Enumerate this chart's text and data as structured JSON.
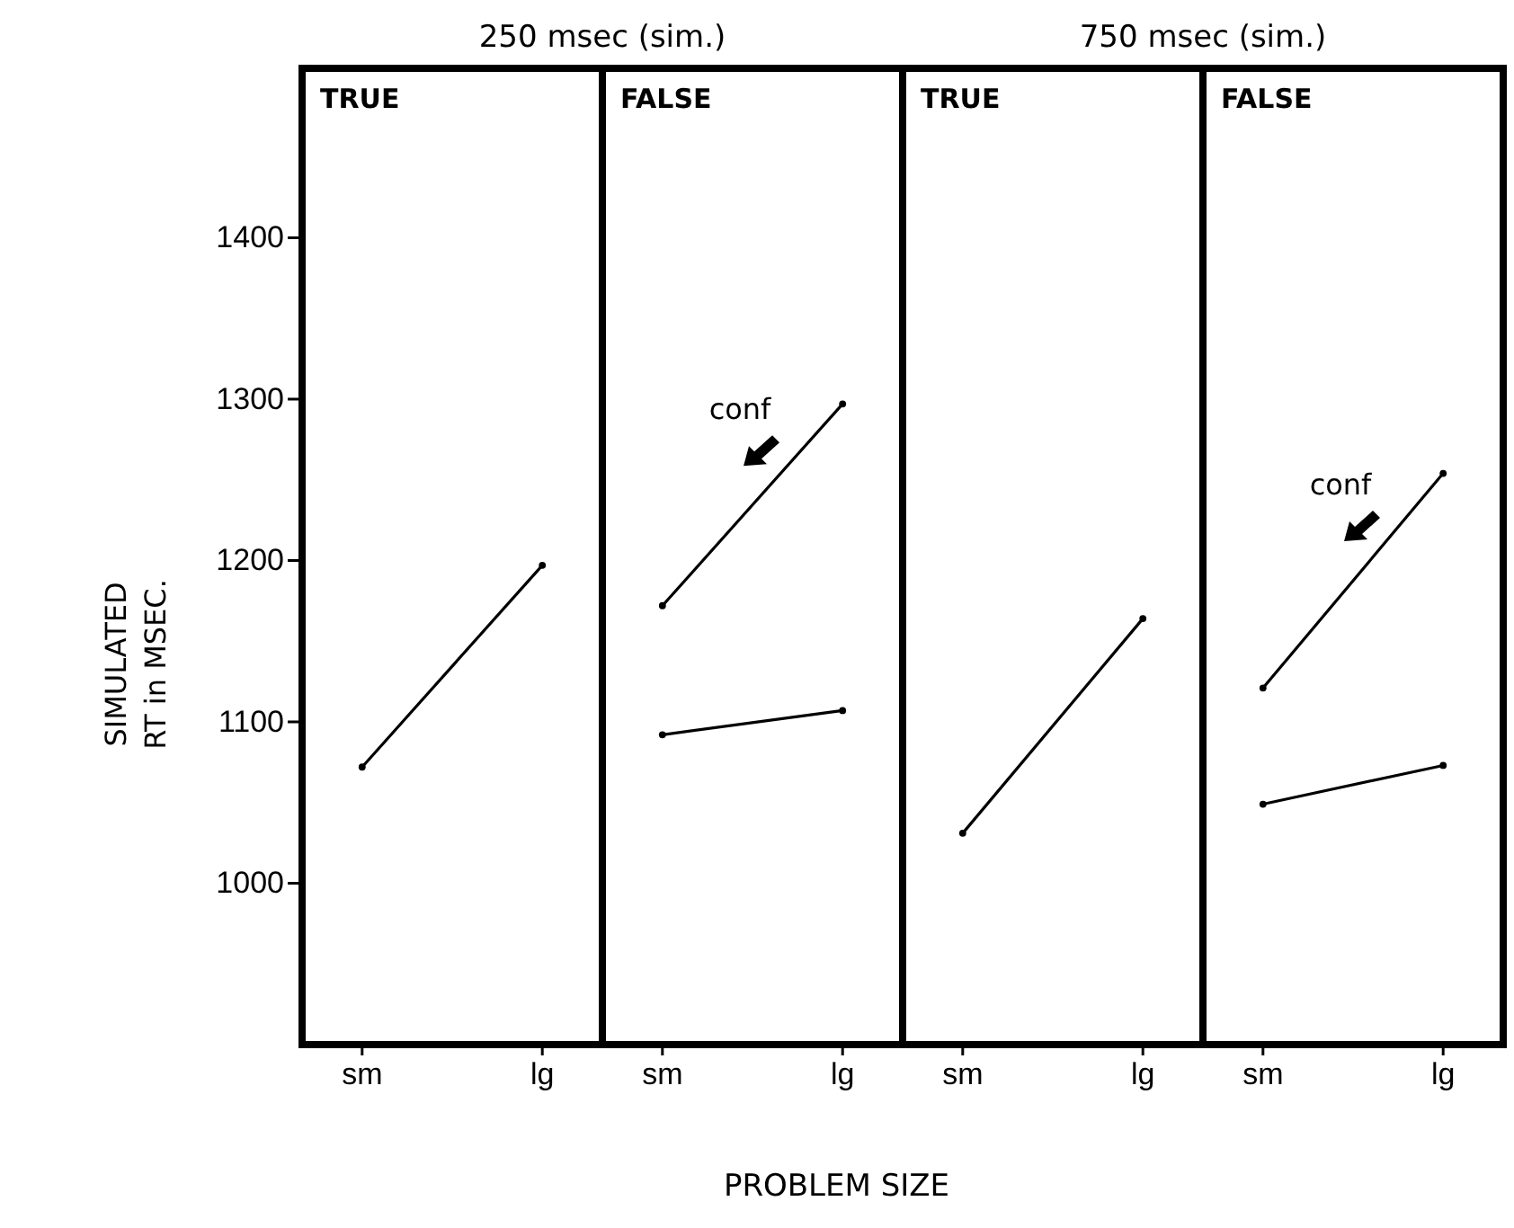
{
  "chart_data": [
    {
      "type": "line",
      "title": "250 msec (sim.)",
      "subtitle": "TRUE",
      "ylabel": "SIMULATED\nRT in MSEC.",
      "categories": [
        "sm",
        "lg"
      ],
      "ylim": [
        900,
        1505
      ],
      "yticks": [
        1000,
        1100,
        1200,
        1300,
        1400
      ],
      "marker": "circle",
      "grid": false,
      "series": [
        {
          "color": "#000000",
          "values": [
            1072,
            1197
          ]
        }
      ]
    },
    {
      "type": "line",
      "subtitle": "FALSE",
      "xlabel": "PROBLEM SIZE",
      "categories": [
        "sm",
        "lg"
      ],
      "ylim": [
        900,
        1505
      ],
      "tick_labels": "x",
      "marker": "circle",
      "grid": false,
      "series": [
        {
          "name": "conf",
          "color": "#000000",
          "values": [
            1172,
            1297
          ]
        },
        {
          "color": "#000000",
          "values": [
            1092,
            1107
          ]
        }
      ]
    },
    {
      "type": "line",
      "title": "750 msec (sim.)",
      "subtitle": "TRUE",
      "categories": [
        "sm",
        "lg"
      ],
      "ylim": [
        900,
        1505
      ],
      "tick_labels": "x",
      "marker": "circle",
      "grid": false,
      "series": [
        {
          "color": "#000000",
          "values": [
            1031,
            1164
          ]
        }
      ]
    },
    {
      "type": "line",
      "subtitle": "FALSE",
      "categories": [
        "sm",
        "lg"
      ],
      "ylim": [
        900,
        1505
      ],
      "tick_labels": "x",
      "marker": "circle",
      "grid": false,
      "series": [
        {
          "name": "conf",
          "color": "#000000",
          "values": [
            1121,
            1254
          ]
        },
        {
          "color": "#000000",
          "values": [
            1049,
            1073
          ]
        }
      ]
    }
  ]
}
